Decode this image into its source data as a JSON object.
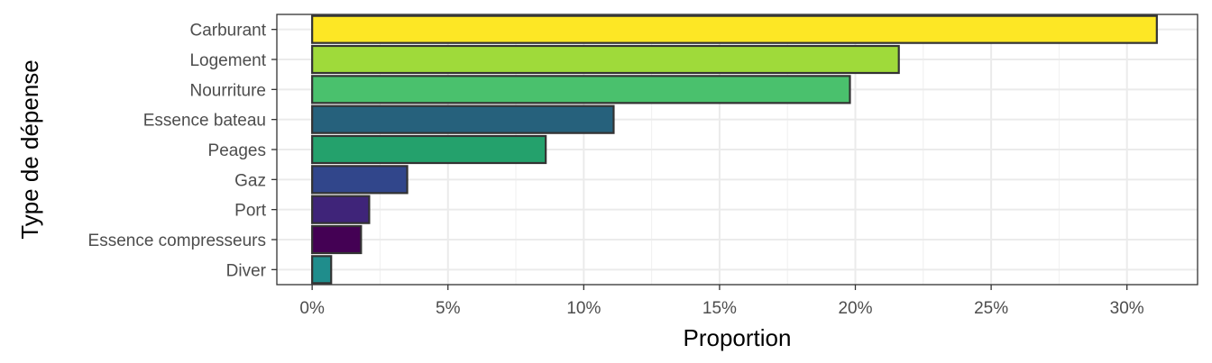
{
  "chart_data": {
    "type": "bar",
    "orientation": "horizontal",
    "categories": [
      "Carburant",
      "Logement",
      "Nourriture",
      "Essence bateau",
      "Peages",
      "Gaz",
      "Port",
      "Essence compresseurs",
      "Diver"
    ],
    "values": [
      0.311,
      0.216,
      0.198,
      0.111,
      0.086,
      0.035,
      0.021,
      0.018,
      0.007
    ],
    "colors": [
      "#FDE725",
      "#9FDA3A",
      "#4AC16D",
      "#26617C",
      "#24A16C",
      "#31468B",
      "#3F2479",
      "#440154",
      "#1F8D8C"
    ],
    "xlabel": "Proportion",
    "ylabel": "Type de dépense",
    "xlim": [
      -0.013,
      0.326
    ],
    "x_ticks": [
      0,
      0.05,
      0.1,
      0.15,
      0.2,
      0.25,
      0.3
    ],
    "x_tick_labels": [
      "0%",
      "5%",
      "10%",
      "15%",
      "20%",
      "25%",
      "30%"
    ],
    "grid": true,
    "legend": "none",
    "theme": "bw"
  }
}
